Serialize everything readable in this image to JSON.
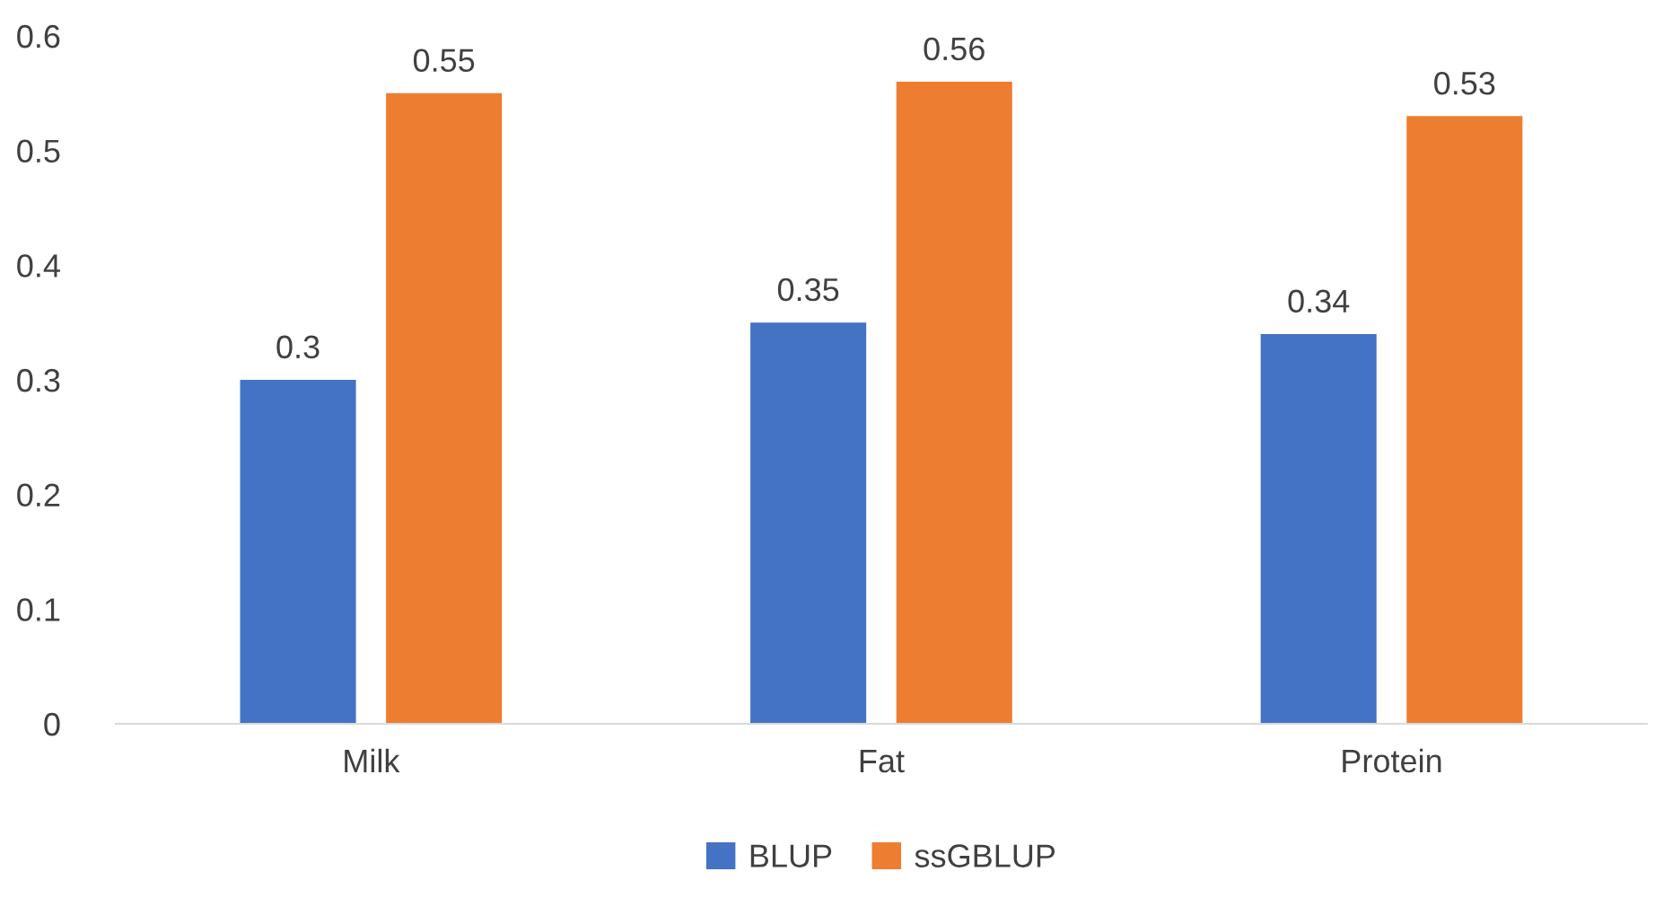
{
  "chart_data": {
    "type": "bar",
    "categories": [
      "Milk",
      "Fat",
      "Protein"
    ],
    "series": [
      {
        "name": "BLUP",
        "color": "#4472c4",
        "values": [
          0.3,
          0.35,
          0.34
        ]
      },
      {
        "name": "ssGBLUP",
        "color": "#ed7d31",
        "values": [
          0.55,
          0.56,
          0.53
        ]
      }
    ],
    "ylim": [
      0,
      0.6
    ],
    "yticks": [
      0,
      0.1,
      0.2,
      0.3,
      0.4,
      0.5,
      0.6
    ],
    "data_labels": true,
    "grid": false,
    "legend": "bottom"
  }
}
